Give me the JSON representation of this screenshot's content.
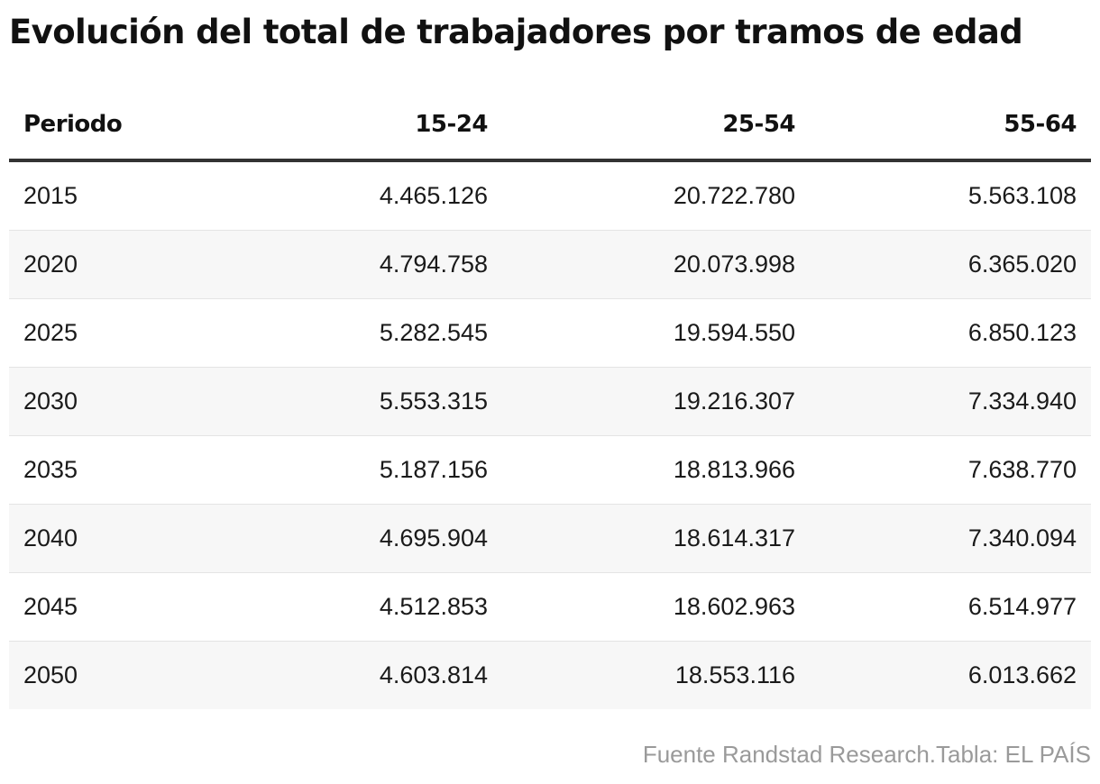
{
  "chart_data": {
    "type": "table",
    "title": "Evolución del total de trabajadores por tramos de edad",
    "columns": [
      "Periodo",
      "15-24",
      "25-54",
      "55-64"
    ],
    "rows": [
      [
        "2015",
        "4.465.126",
        "20.722.780",
        "5.563.108"
      ],
      [
        "2020",
        "4.794.758",
        "20.073.998",
        "6.365.020"
      ],
      [
        "2025",
        "5.282.545",
        "19.594.550",
        "6.850.123"
      ],
      [
        "2030",
        "5.553.315",
        "19.216.307",
        "7.334.940"
      ],
      [
        "2035",
        "5.187.156",
        "18.813.966",
        "7.638.770"
      ],
      [
        "2040",
        "4.695.904",
        "18.614.317",
        "7.340.094"
      ],
      [
        "2045",
        "4.512.853",
        "18.602.963",
        "6.514.977"
      ],
      [
        "2050",
        "4.603.814",
        "18.553.116",
        "6.013.662"
      ]
    ],
    "source": "Fuente Randstad Research.Tabla: EL PAÍS"
  }
}
